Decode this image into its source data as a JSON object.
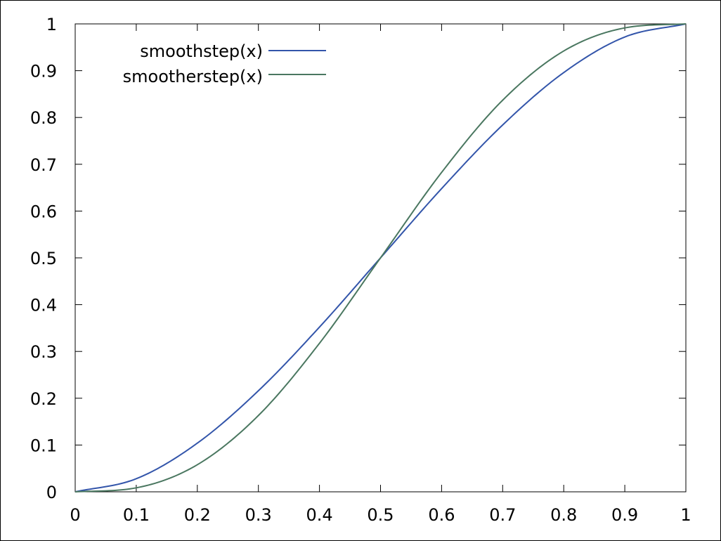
{
  "chart_data": {
    "type": "line",
    "title": "",
    "xlabel": "",
    "ylabel": "",
    "xlim": [
      0,
      1
    ],
    "ylim": [
      0,
      1
    ],
    "x_ticks": [
      "0",
      "0.1",
      "0.2",
      "0.3",
      "0.4",
      "0.5",
      "0.6",
      "0.7",
      "0.8",
      "0.9",
      "1"
    ],
    "y_ticks": [
      "0",
      "0.1",
      "0.2",
      "0.3",
      "0.4",
      "0.5",
      "0.6",
      "0.7",
      "0.8",
      "0.9",
      "1"
    ],
    "grid": false,
    "legend_position": "top-left",
    "x": [
      0,
      0.1,
      0.2,
      0.3,
      0.4,
      0.5,
      0.6,
      0.7,
      0.8,
      0.9,
      1
    ],
    "series": [
      {
        "name": "smoothstep(x)",
        "color": "#3355aa",
        "values": [
          0,
          0.028,
          0.104,
          0.216,
          0.352,
          0.5,
          0.648,
          0.784,
          0.896,
          0.972,
          1
        ]
      },
      {
        "name": "smootherstep(x)",
        "color": "#4a7760",
        "values": [
          0,
          0.00856,
          0.05792,
          0.16308,
          0.31744,
          0.5,
          0.68256,
          0.83692,
          0.94208,
          0.99144,
          1
        ]
      }
    ]
  }
}
